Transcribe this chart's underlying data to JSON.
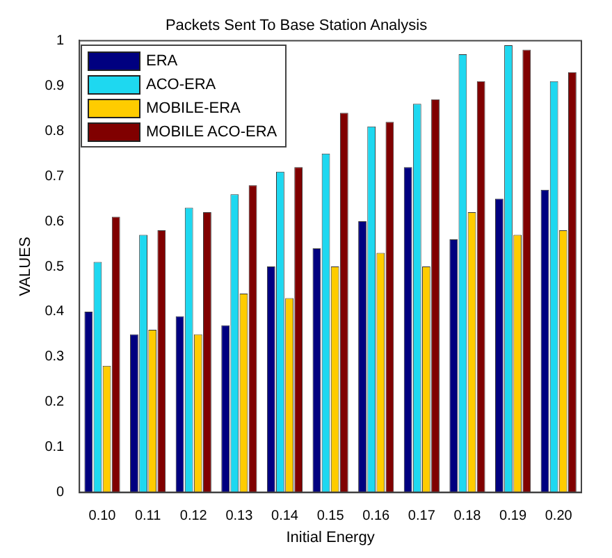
{
  "chart_data": {
    "type": "bar",
    "title": "Packets Sent To Base Station Analysis",
    "xlabel": "Initial Energy",
    "ylabel": "VALUES",
    "categories": [
      "0.10",
      "0.11",
      "0.12",
      "0.13",
      "0.14",
      "0.15",
      "0.16",
      "0.17",
      "0.18",
      "0.19",
      "0.20"
    ],
    "series": [
      {
        "name": "ERA",
        "color": "#000080",
        "values": [
          0.4,
          0.35,
          0.39,
          0.37,
          0.5,
          0.54,
          0.6,
          0.72,
          0.56,
          0.65,
          0.67
        ]
      },
      {
        "name": "ACO-ERA",
        "color": "#1ed8f0",
        "values": [
          0.51,
          0.57,
          0.63,
          0.66,
          0.71,
          0.75,
          0.81,
          0.86,
          0.97,
          0.99,
          0.91
        ]
      },
      {
        "name": "MOBILE-ERA",
        "color": "#ffcc00",
        "values": [
          0.28,
          0.36,
          0.35,
          0.44,
          0.43,
          0.5,
          0.53,
          0.5,
          0.62,
          0.57,
          0.58
        ]
      },
      {
        "name": "MOBILE ACO-ERA",
        "color": "#800000",
        "values": [
          0.61,
          0.58,
          0.62,
          0.68,
          0.72,
          0.84,
          0.82,
          0.87,
          0.91,
          0.98,
          0.93
        ]
      }
    ],
    "ylim": [
      0,
      1
    ],
    "yticks": [
      0,
      0.1,
      0.2,
      0.3,
      0.4,
      0.5,
      0.6,
      0.7,
      0.8,
      0.9,
      1
    ],
    "grid": false,
    "legend": "top left"
  }
}
